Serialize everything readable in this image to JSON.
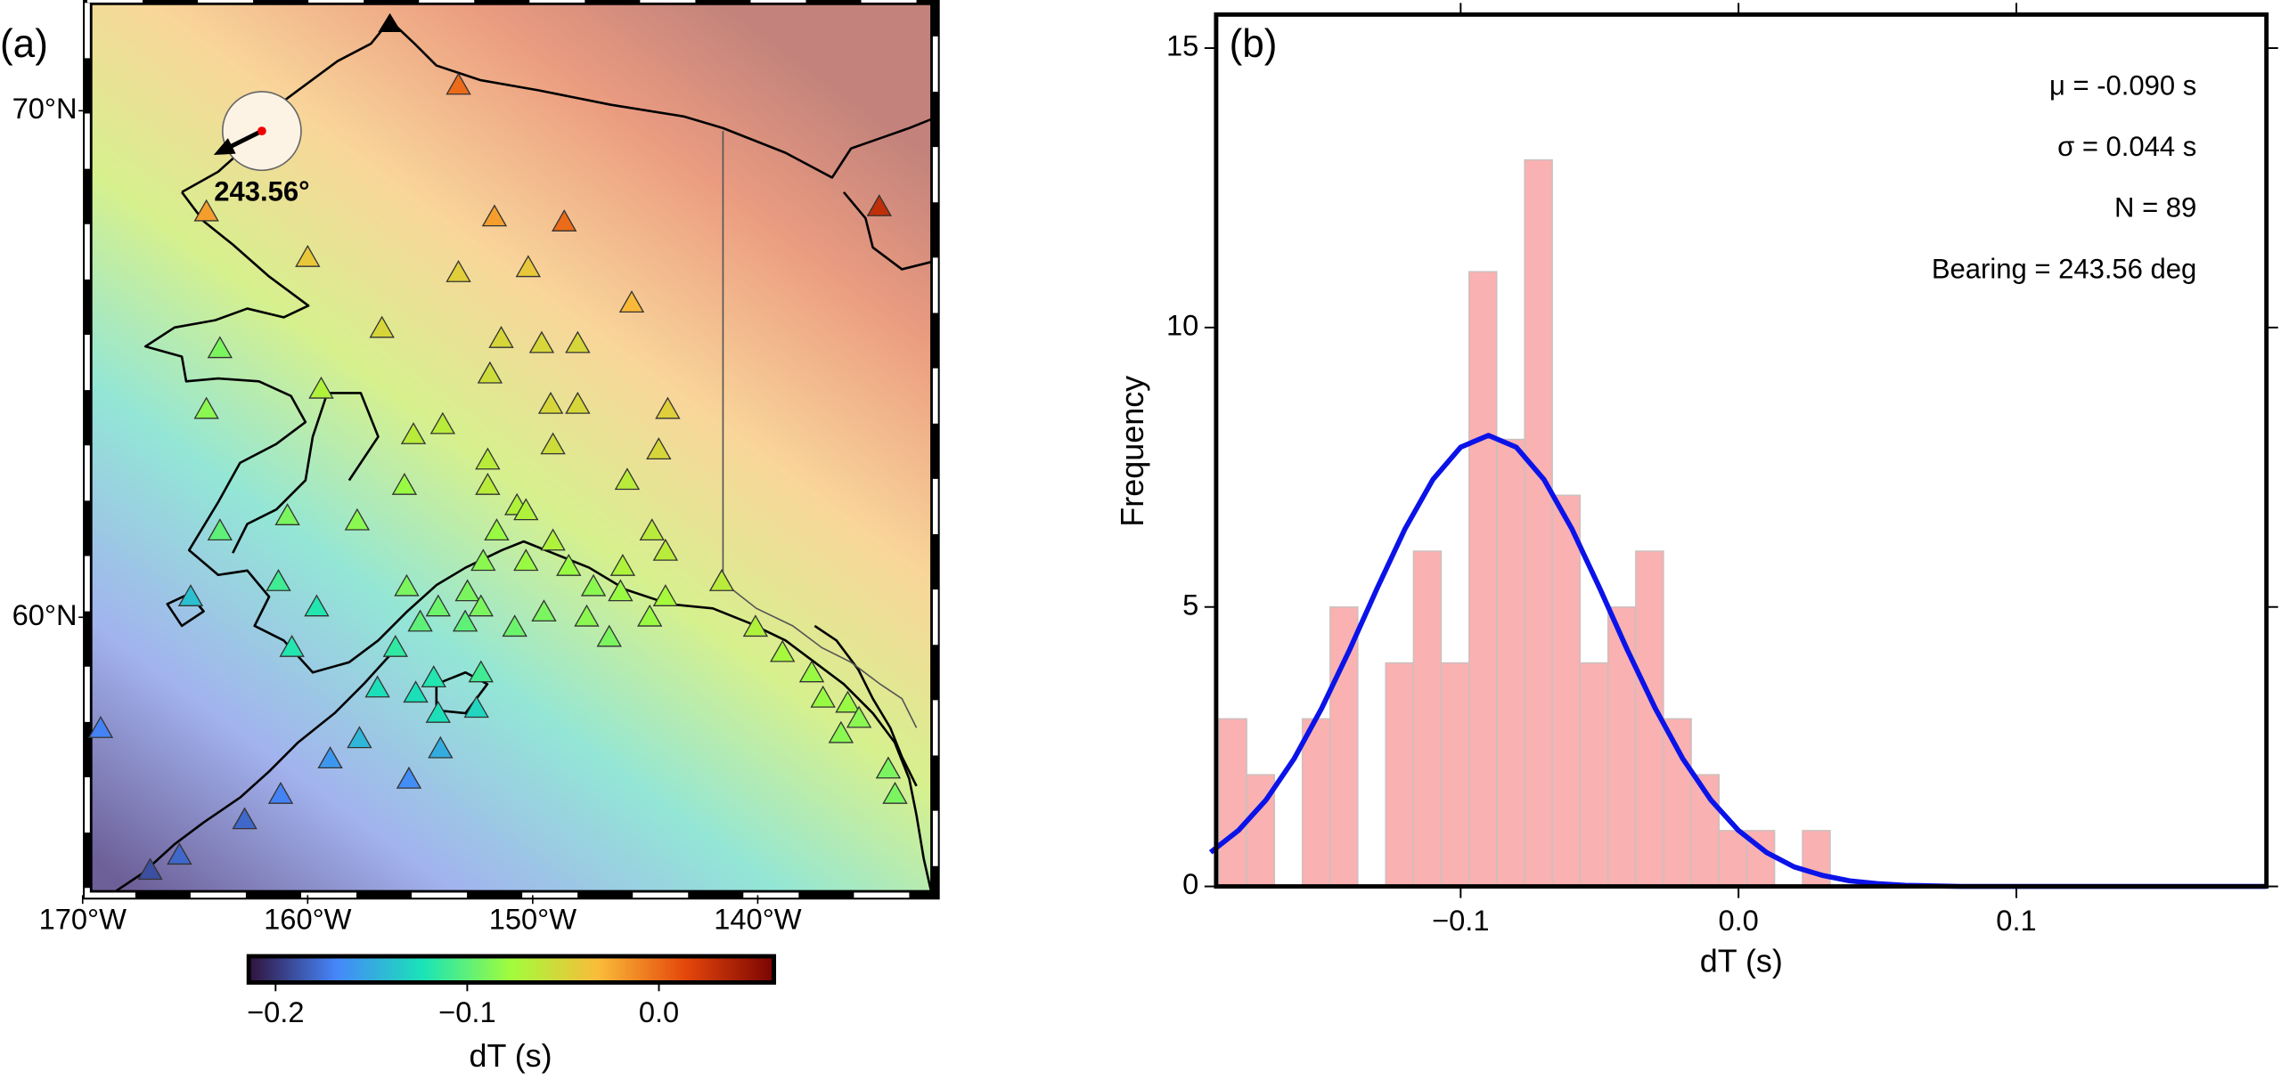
{
  "chart_data": [
    {
      "type": "map",
      "panel": "(a)",
      "xlim": [
        -169.6,
        -132.3
      ],
      "ylim": [
        54.6,
        72.1
      ],
      "xticks": [
        {
          "value": -170,
          "label": "170°W"
        },
        {
          "value": -160,
          "label": "160°W"
        },
        {
          "value": -150,
          "label": "150°W"
        },
        {
          "value": -140,
          "label": "140°W"
        }
      ],
      "yticks": [
        {
          "value": 60,
          "label": "60°N"
        },
        {
          "value": 70,
          "label": "70°N"
        }
      ],
      "x": [
        -153.3,
        -164.5,
        -151.7,
        -148.6,
        -134.6,
        -160.0,
        -153.3,
        -150.2,
        -145.6,
        -156.7,
        -151.4,
        -149.6,
        -148.0,
        -163.9,
        -151.9,
        -159.4,
        -149.2,
        -148.0,
        -144.0,
        -164.5,
        -155.3,
        -154.0,
        -149.1,
        -144.4,
        -152.0,
        -155.7,
        -145.8,
        -152.0,
        -160.9,
        -157.8,
        -150.7,
        -150.3,
        -163.9,
        -151.6,
        -149.1,
        -144.7,
        -144.1,
        -152.2,
        -150.3,
        -148.4,
        -146.0,
        -141.6,
        -161.3,
        -155.6,
        -152.9,
        -147.3,
        -146.1,
        -144.1,
        -165.2,
        -159.6,
        -154.2,
        -152.3,
        -150.8,
        -149.5,
        -147.6,
        -144.8,
        -155.0,
        -153.0,
        -146.6,
        -160.7,
        -156.1,
        -140.1,
        -138.9,
        -137.6,
        -154.4,
        -152.3,
        -137.1,
        -136.0,
        -135.5,
        -156.9,
        -155.2,
        -152.5,
        -154.2,
        -169.2,
        -136.3,
        -157.7,
        -154.1,
        -159.0,
        -134.2,
        -133.9,
        -155.5,
        -161.2,
        -162.8,
        -165.7,
        -167.0
      ],
      "y": [
        70.5,
        68.0,
        67.9,
        67.8,
        68.1,
        67.1,
        66.8,
        66.9,
        66.2,
        65.7,
        65.5,
        65.4,
        65.4,
        65.3,
        64.8,
        64.5,
        64.2,
        64.2,
        64.1,
        64.1,
        63.6,
        63.8,
        63.4,
        63.3,
        63.1,
        62.6,
        62.7,
        62.6,
        62.0,
        61.9,
        62.2,
        62.1,
        61.7,
        61.7,
        61.5,
        61.7,
        61.3,
        61.1,
        61.1,
        61.0,
        61.0,
        60.7,
        60.7,
        60.6,
        60.5,
        60.6,
        60.5,
        60.4,
        60.4,
        60.2,
        60.2,
        60.2,
        59.8,
        60.1,
        60.0,
        60.0,
        59.9,
        59.9,
        59.6,
        59.4,
        59.4,
        59.8,
        59.3,
        58.9,
        58.8,
        58.9,
        58.4,
        58.3,
        58.0,
        58.6,
        58.5,
        58.2,
        58.1,
        57.8,
        57.7,
        57.6,
        57.4,
        57.2,
        57.0,
        56.5,
        56.8,
        56.5,
        56.0,
        55.3,
        55.0
      ],
      "values": [
        0.0,
        -0.02,
        -0.02,
        0.0,
        0.03,
        -0.04,
        -0.045,
        -0.04,
        -0.03,
        -0.05,
        -0.05,
        -0.05,
        -0.05,
        -0.09,
        -0.055,
        -0.07,
        -0.05,
        -0.05,
        -0.045,
        -0.085,
        -0.065,
        -0.065,
        -0.055,
        -0.05,
        -0.065,
        -0.08,
        -0.065,
        -0.065,
        -0.09,
        -0.085,
        -0.07,
        -0.07,
        -0.1,
        -0.08,
        -0.07,
        -0.065,
        -0.065,
        -0.085,
        -0.08,
        -0.08,
        -0.07,
        -0.065,
        -0.11,
        -0.09,
        -0.09,
        -0.085,
        -0.08,
        -0.075,
        -0.14,
        -0.12,
        -0.095,
        -0.09,
        -0.095,
        -0.09,
        -0.085,
        -0.08,
        -0.1,
        -0.1,
        -0.09,
        -0.12,
        -0.115,
        -0.07,
        -0.075,
        -0.08,
        -0.12,
        -0.11,
        -0.08,
        -0.08,
        -0.085,
        -0.125,
        -0.125,
        -0.13,
        -0.125,
        -0.17,
        -0.085,
        -0.145,
        -0.15,
        -0.16,
        -0.09,
        -0.09,
        -0.165,
        -0.17,
        -0.18,
        -0.18,
        -0.19
      ],
      "colormap": [
        "#30123b",
        "#4686fb",
        "#1ae4b6",
        "#a2fc3c",
        "#fabb39",
        "#e4460a",
        "#7a0403"
      ],
      "colorbar": {
        "lim": [
          -0.214,
          0.06
        ],
        "ticks": [
          {
            "value": -0.2,
            "label": "−0.2"
          },
          {
            "value": -0.1,
            "label": "−0.1"
          },
          {
            "value": 0,
            "label": "0.0"
          }
        ],
        "label": "dT (s)"
      },
      "bearing": 243.56,
      "bearing_label": "243.56°"
    },
    {
      "type": "histogram",
      "panel": "(b)",
      "xlabel": "dT (s)",
      "ylabel": "Frequency",
      "bins": [
        -0.187,
        -0.177,
        -0.167,
        -0.157,
        -0.147,
        -0.137,
        -0.127,
        -0.117,
        -0.107,
        -0.097,
        -0.087,
        -0.077,
        -0.067,
        -0.057,
        -0.047,
        -0.037,
        -0.027,
        -0.017,
        -0.007,
        0.003,
        0.013,
        0.023,
        0.033
      ],
      "counts": [
        3,
        2,
        0,
        3,
        5,
        0,
        4,
        6,
        4,
        11,
        8,
        13,
        7,
        4,
        5,
        6,
        3,
        2,
        1,
        1,
        0,
        1
      ],
      "color": "#f9b1b1",
      "curve": {
        "color": "#0b13e8",
        "x": [
          -0.19,
          -0.18,
          -0.17,
          -0.16,
          -0.15,
          -0.14,
          -0.13,
          -0.12,
          -0.11,
          -0.1,
          -0.09,
          -0.08,
          -0.07,
          -0.06,
          -0.05,
          -0.04,
          -0.03,
          -0.02,
          -0.01,
          0.0,
          0.01,
          0.02,
          0.03,
          0.04,
          0.05,
          0.06,
          0.07,
          0.08,
          0.09,
          0.1,
          0.11,
          0.12,
          0.13,
          0.14,
          0.15,
          0.16,
          0.17,
          0.18,
          0.19
        ],
        "y": [
          0.61,
          1.0,
          1.55,
          2.28,
          3.19,
          4.23,
          5.34,
          6.4,
          7.28,
          7.86,
          8.07,
          7.86,
          7.28,
          6.4,
          5.34,
          4.23,
          3.19,
          2.28,
          1.55,
          1.0,
          0.61,
          0.35,
          0.2,
          0.1,
          0.05,
          0.02,
          0.01,
          0,
          0,
          0,
          0,
          0,
          0,
          0,
          0,
          0,
          0,
          0,
          0
        ]
      },
      "xlim": [
        -0.188,
        0.19
      ],
      "ylim": [
        0,
        15.6
      ],
      "xticks": [
        {
          "value": -0.1,
          "label": "−0.1"
        },
        {
          "value": 0,
          "label": "0.0"
        },
        {
          "value": 0.1,
          "label": "0.1"
        }
      ],
      "yticks": [
        0,
        5,
        10,
        15
      ],
      "annotations": [
        "μ = -0.090 s",
        "σ = 0.044 s",
        "N = 89",
        "Bearing = 243.56 deg"
      ]
    }
  ]
}
